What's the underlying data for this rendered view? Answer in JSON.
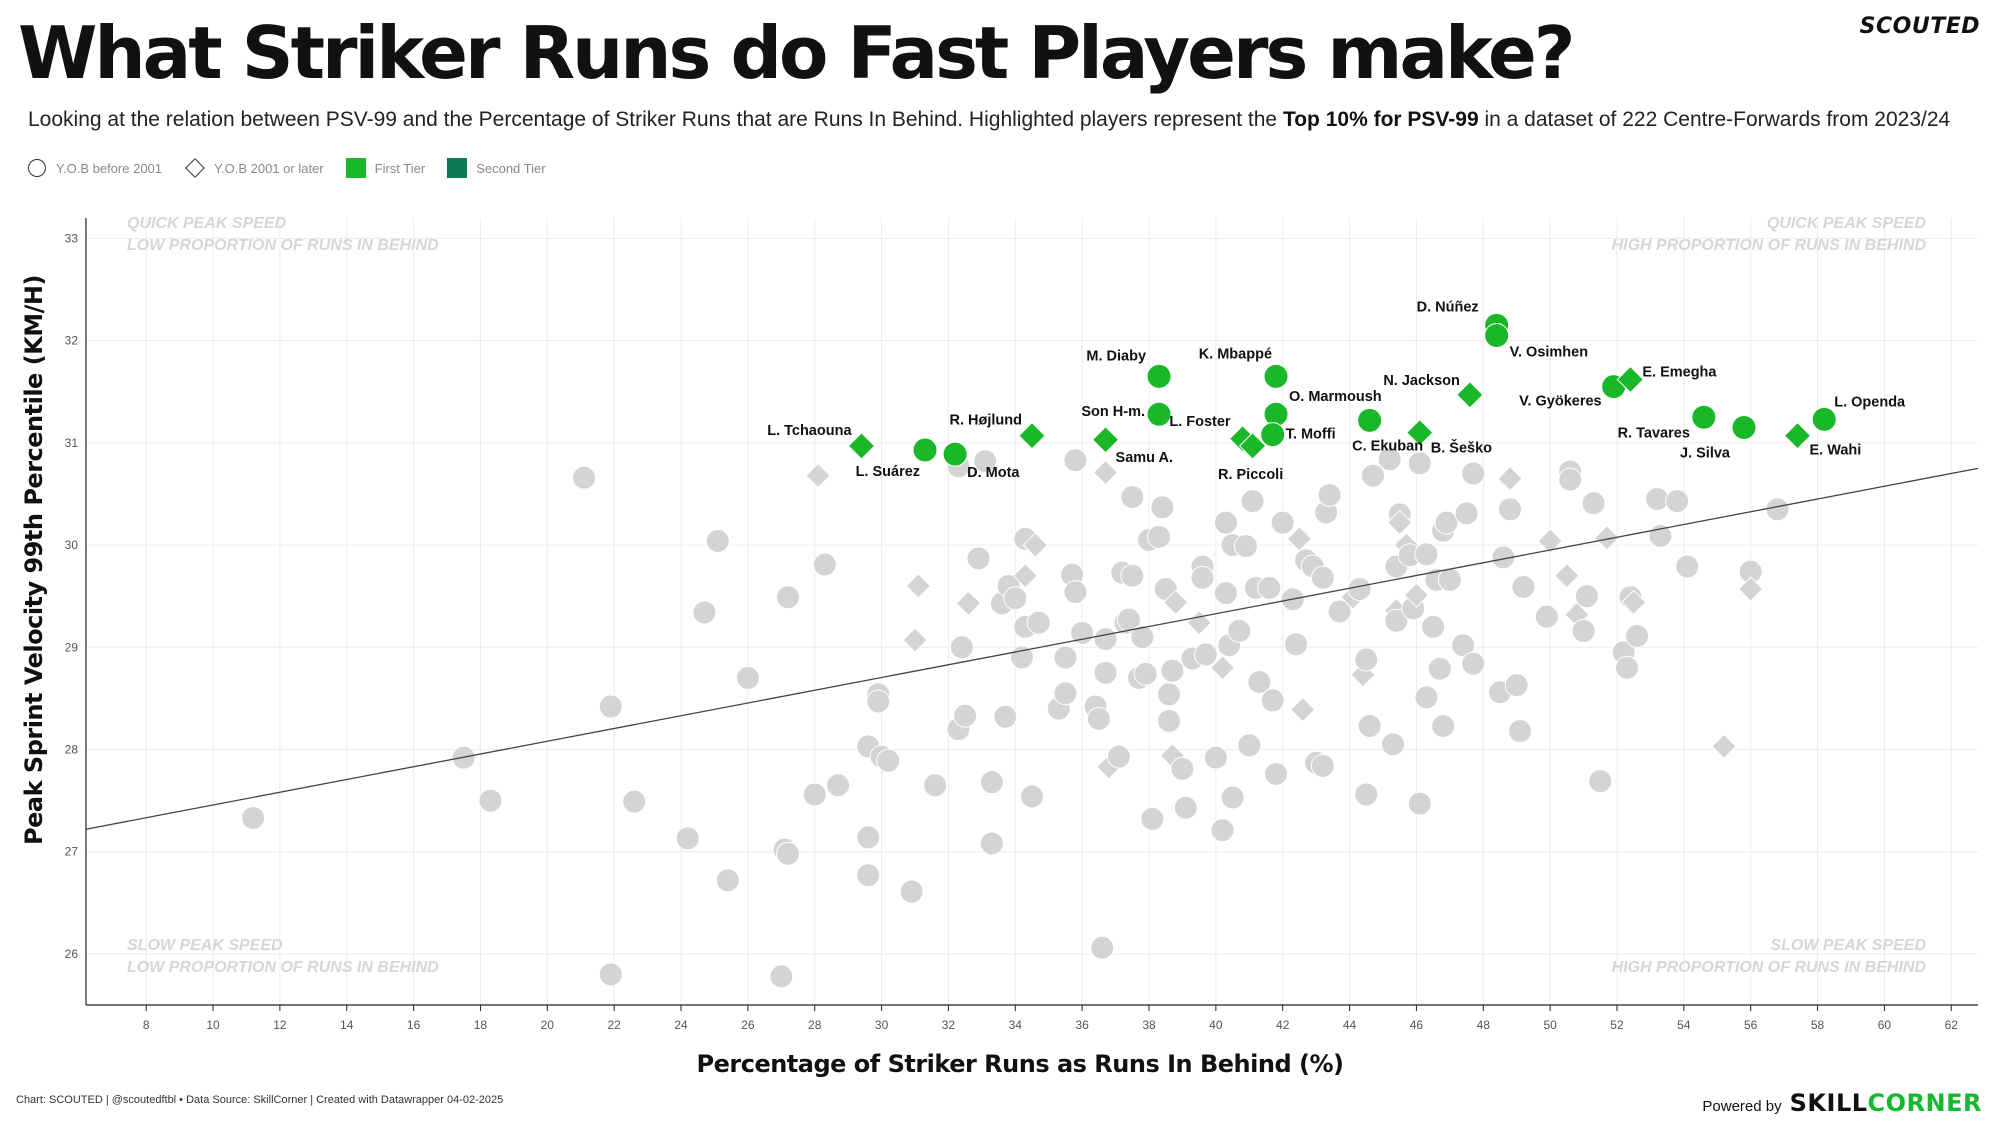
{
  "header": {
    "brand": "SCOUTED",
    "title": "What Striker Runs do Fast Players make?",
    "subtitle_pre": "Looking at the relation between PSV-99 and the Percentage of Striker Runs that are Runs In Behind. Highlighted players represent the ",
    "subtitle_bold": "Top 10% for PSV-99",
    "subtitle_post": " in a dataset of 222 Centre-Forwards from 2023/24"
  },
  "legend": {
    "circle": "Y.O.B before 2001",
    "diamond": "Y.O.B 2001 or later",
    "first_tier": "First Tier",
    "second_tier": "Second Tier",
    "first_tier_color": "#1ab829",
    "second_tier_color": "#0e7a55"
  },
  "footer": {
    "credit": "Chart: SCOUTED | @scoutedftbl • Data Source: SkillCorner | Created with Datawrapper 04-02-2025",
    "powered": "Powered by",
    "logo_a": "SKILL",
    "logo_b": "CORNER"
  },
  "chart_data": {
    "type": "scatter",
    "xlabel": "Percentage of Striker Runs as Runs In Behind (%)",
    "ylabel": "Peak Sprint Velocity 99th Percentile (KM/H)",
    "xlim": [
      6.2,
      62.8
    ],
    "ylim": [
      25.5,
      33.2
    ],
    "xticks": [
      8,
      10,
      12,
      14,
      16,
      18,
      20,
      22,
      24,
      26,
      28,
      30,
      32,
      34,
      36,
      38,
      40,
      42,
      44,
      46,
      48,
      50,
      52,
      54,
      56,
      58,
      60,
      62
    ],
    "yticks": [
      26,
      27,
      28,
      29,
      30,
      31,
      32,
      33
    ],
    "grid": true,
    "quadrant_labels": {
      "top_left": [
        "QUICK PEAK SPEED",
        "LOW PROPORTION OF RUNS IN BEHIND"
      ],
      "top_right": [
        "QUICK PEAK SPEED",
        "HIGH PROPORTION OF RUNS IN BEHIND"
      ],
      "bottom_left": [
        "SLOW PEAK SPEED",
        "LOW PROPORTION OF RUNS IN BEHIND"
      ],
      "bottom_right": [
        "SLOW PEAK SPEED",
        "HIGH PROPORTION OF  RUNS IN BEHIND"
      ]
    },
    "trendline": {
      "x": [
        6.2,
        62.8
      ],
      "y": [
        27.22,
        30.75
      ]
    },
    "colors": {
      "highlight": "#1ab829",
      "background": "#d4d4d4",
      "trend": "#444444"
    },
    "highlighted": [
      {
        "name": "D. Núñez",
        "x": 48.4,
        "y": 32.15,
        "shape": "circle"
      },
      {
        "name": "V. Osimhen",
        "x": 48.4,
        "y": 32.05,
        "shape": "circle"
      },
      {
        "name": "M. Diaby",
        "x": 38.3,
        "y": 31.65,
        "shape": "circle"
      },
      {
        "name": "K. Mbappé",
        "x": 41.8,
        "y": 31.65,
        "shape": "circle"
      },
      {
        "name": "Son H-m.",
        "x": 38.3,
        "y": 31.28,
        "shape": "circle"
      },
      {
        "name": "O. Marmoush",
        "x": 41.8,
        "y": 31.28,
        "shape": "circle"
      },
      {
        "name": "L. Foster",
        "x": 40.8,
        "y": 31.04,
        "shape": "diamond"
      },
      {
        "name": "R. Piccoli",
        "x": 41.1,
        "y": 30.97,
        "shape": "diamond"
      },
      {
        "name": "T. Moffi",
        "x": 41.7,
        "y": 31.08,
        "shape": "circle"
      },
      {
        "name": "C. Ekuban",
        "x": 44.6,
        "y": 31.22,
        "shape": "circle"
      },
      {
        "name": "N. Jackson",
        "x": 47.6,
        "y": 31.47,
        "shape": "diamond"
      },
      {
        "name": "B. Šeško",
        "x": 46.1,
        "y": 31.1,
        "shape": "diamond"
      },
      {
        "name": "V. Gyökeres",
        "x": 51.9,
        "y": 31.55,
        "shape": "circle"
      },
      {
        "name": "E. Emegha",
        "x": 52.4,
        "y": 31.62,
        "shape": "diamond"
      },
      {
        "name": "R. Tavares",
        "x": 54.6,
        "y": 31.25,
        "shape": "circle"
      },
      {
        "name": "J. Silva",
        "x": 55.8,
        "y": 31.15,
        "shape": "circle"
      },
      {
        "name": "L. Openda",
        "x": 58.2,
        "y": 31.23,
        "shape": "circle"
      },
      {
        "name": "E. Wahi",
        "x": 57.4,
        "y": 31.07,
        "shape": "diamond"
      },
      {
        "name": "L. Tchaouna",
        "x": 29.4,
        "y": 30.97,
        "shape": "diamond"
      },
      {
        "name": "L. Suárez",
        "x": 31.3,
        "y": 30.93,
        "shape": "circle"
      },
      {
        "name": "D. Mota",
        "x": 32.2,
        "y": 30.89,
        "shape": "circle"
      },
      {
        "name": "R. Højlund",
        "x": 34.5,
        "y": 31.07,
        "shape": "diamond"
      },
      {
        "name": "Samu A.",
        "x": 36.7,
        "y": 31.03,
        "shape": "diamond"
      }
    ],
    "others": [
      [
        11.2,
        27.33,
        "c"
      ],
      [
        17.5,
        27.92,
        "c"
      ],
      [
        18.3,
        27.5,
        "c"
      ],
      [
        21.1,
        30.66,
        "c"
      ],
      [
        21.9,
        28.42,
        "c"
      ],
      [
        21.9,
        25.8,
        "c"
      ],
      [
        22.6,
        27.49,
        "c"
      ],
      [
        24.2,
        27.13,
        "c"
      ],
      [
        24.7,
        29.34,
        "c"
      ],
      [
        25.1,
        30.04,
        "c"
      ],
      [
        25.4,
        26.72,
        "c"
      ],
      [
        26.0,
        28.7,
        "c"
      ],
      [
        27.0,
        25.78,
        "c"
      ],
      [
        27.1,
        27.02,
        "c"
      ],
      [
        27.2,
        26.98,
        "c"
      ],
      [
        27.2,
        29.49,
        "c"
      ],
      [
        28.0,
        27.56,
        "c"
      ],
      [
        28.1,
        30.68,
        "d"
      ],
      [
        28.3,
        29.81,
        "c"
      ],
      [
        28.7,
        27.65,
        "c"
      ],
      [
        29.6,
        28.03,
        "c"
      ],
      [
        29.6,
        27.14,
        "c"
      ],
      [
        29.6,
        26.77,
        "c"
      ],
      [
        29.9,
        28.54,
        "c"
      ],
      [
        29.9,
        28.47,
        "c"
      ],
      [
        30.0,
        27.93,
        "c"
      ],
      [
        30.2,
        27.89,
        "c"
      ],
      [
        30.9,
        26.61,
        "c"
      ],
      [
        31.0,
        29.07,
        "d"
      ],
      [
        31.1,
        29.6,
        "d"
      ],
      [
        31.6,
        27.65,
        "c"
      ],
      [
        32.3,
        28.2,
        "c"
      ],
      [
        32.3,
        30.77,
        "c"
      ],
      [
        32.4,
        29.0,
        "c"
      ],
      [
        32.5,
        28.33,
        "c"
      ],
      [
        32.6,
        29.43,
        "d"
      ],
      [
        32.9,
        29.87,
        "c"
      ],
      [
        33.1,
        30.82,
        "c"
      ],
      [
        33.3,
        27.08,
        "c"
      ],
      [
        33.3,
        27.68,
        "c"
      ],
      [
        33.6,
        29.43,
        "c"
      ],
      [
        33.7,
        28.32,
        "c"
      ],
      [
        33.8,
        29.6,
        "c"
      ],
      [
        34.0,
        29.48,
        "c"
      ],
      [
        34.2,
        28.9,
        "c"
      ],
      [
        34.3,
        30.06,
        "c"
      ],
      [
        34.3,
        29.7,
        "d"
      ],
      [
        34.3,
        29.2,
        "c"
      ],
      [
        34.5,
        27.54,
        "c"
      ],
      [
        34.6,
        30.0,
        "d"
      ],
      [
        34.7,
        29.24,
        "c"
      ],
      [
        35.3,
        28.4,
        "c"
      ],
      [
        35.5,
        28.55,
        "c"
      ],
      [
        35.5,
        28.9,
        "c"
      ],
      [
        35.7,
        29.71,
        "c"
      ],
      [
        35.8,
        29.54,
        "c"
      ],
      [
        35.8,
        30.83,
        "c"
      ],
      [
        36.0,
        29.14,
        "c"
      ],
      [
        36.4,
        28.42,
        "c"
      ],
      [
        36.5,
        28.3,
        "c"
      ],
      [
        36.6,
        26.06,
        "c"
      ],
      [
        36.7,
        28.75,
        "c"
      ],
      [
        36.7,
        29.08,
        "c"
      ],
      [
        36.7,
        30.71,
        "d"
      ],
      [
        36.8,
        27.83,
        "d"
      ],
      [
        37.1,
        27.93,
        "c"
      ],
      [
        37.2,
        29.73,
        "c"
      ],
      [
        37.3,
        29.24,
        "c"
      ],
      [
        37.4,
        29.27,
        "c"
      ],
      [
        37.5,
        30.47,
        "c"
      ],
      [
        37.5,
        29.7,
        "c"
      ],
      [
        37.7,
        28.7,
        "c"
      ],
      [
        37.8,
        29.1,
        "c"
      ],
      [
        37.9,
        28.74,
        "c"
      ],
      [
        38.0,
        30.05,
        "c"
      ],
      [
        38.1,
        27.32,
        "c"
      ],
      [
        38.3,
        30.08,
        "c"
      ],
      [
        38.4,
        30.37,
        "c"
      ],
      [
        38.5,
        29.57,
        "c"
      ],
      [
        38.6,
        28.54,
        "c"
      ],
      [
        38.6,
        28.28,
        "c"
      ],
      [
        38.7,
        27.94,
        "d"
      ],
      [
        38.7,
        28.77,
        "c"
      ],
      [
        38.8,
        29.44,
        "d"
      ],
      [
        39.0,
        27.81,
        "c"
      ],
      [
        39.1,
        27.43,
        "c"
      ],
      [
        39.3,
        28.89,
        "c"
      ],
      [
        39.5,
        29.24,
        "d"
      ],
      [
        39.6,
        29.79,
        "c"
      ],
      [
        39.6,
        29.68,
        "c"
      ],
      [
        39.7,
        28.93,
        "c"
      ],
      [
        40.0,
        27.92,
        "c"
      ],
      [
        40.2,
        27.21,
        "c"
      ],
      [
        40.2,
        28.8,
        "d"
      ],
      [
        40.3,
        30.22,
        "c"
      ],
      [
        40.3,
        29.53,
        "c"
      ],
      [
        40.4,
        29.02,
        "c"
      ],
      [
        40.5,
        27.53,
        "c"
      ],
      [
        40.5,
        30.0,
        "c"
      ],
      [
        40.7,
        29.16,
        "c"
      ],
      [
        40.9,
        29.99,
        "c"
      ],
      [
        41.0,
        28.04,
        "c"
      ],
      [
        41.1,
        30.43,
        "c"
      ],
      [
        41.2,
        29.58,
        "c"
      ],
      [
        41.3,
        28.66,
        "c"
      ],
      [
        41.6,
        29.58,
        "c"
      ],
      [
        41.7,
        28.48,
        "c"
      ],
      [
        41.8,
        27.76,
        "c"
      ],
      [
        42.0,
        30.22,
        "c"
      ],
      [
        42.3,
        29.47,
        "c"
      ],
      [
        42.4,
        29.03,
        "c"
      ],
      [
        42.5,
        30.06,
        "d"
      ],
      [
        42.6,
        28.39,
        "d"
      ],
      [
        42.7,
        29.85,
        "c"
      ],
      [
        42.9,
        29.79,
        "c"
      ],
      [
        43.0,
        27.87,
        "c"
      ],
      [
        43.2,
        27.84,
        "c"
      ],
      [
        43.2,
        29.68,
        "c"
      ],
      [
        43.3,
        30.32,
        "c"
      ],
      [
        43.4,
        30.49,
        "c"
      ],
      [
        43.7,
        29.35,
        "c"
      ],
      [
        44.1,
        29.49,
        "d"
      ],
      [
        44.3,
        29.57,
        "c"
      ],
      [
        44.4,
        28.73,
        "d"
      ],
      [
        44.5,
        28.88,
        "c"
      ],
      [
        44.5,
        27.56,
        "c"
      ],
      [
        44.6,
        28.23,
        "c"
      ],
      [
        44.7,
        30.68,
        "c"
      ],
      [
        45.2,
        30.84,
        "c"
      ],
      [
        45.3,
        28.05,
        "c"
      ],
      [
        45.4,
        29.36,
        "d"
      ],
      [
        45.4,
        29.26,
        "c"
      ],
      [
        45.4,
        29.79,
        "c"
      ],
      [
        45.5,
        30.3,
        "c"
      ],
      [
        45.5,
        30.22,
        "d"
      ],
      [
        45.7,
        30.0,
        "d"
      ],
      [
        45.8,
        29.9,
        "c"
      ],
      [
        45.9,
        29.38,
        "c"
      ],
      [
        46.0,
        29.51,
        "d"
      ],
      [
        46.1,
        27.47,
        "c"
      ],
      [
        46.1,
        30.8,
        "c"
      ],
      [
        46.3,
        28.51,
        "c"
      ],
      [
        46.3,
        29.91,
        "c"
      ],
      [
        46.5,
        29.2,
        "c"
      ],
      [
        46.6,
        29.66,
        "c"
      ],
      [
        46.7,
        28.79,
        "c"
      ],
      [
        46.8,
        30.14,
        "c"
      ],
      [
        46.8,
        28.23,
        "c"
      ],
      [
        46.9,
        30.22,
        "c"
      ],
      [
        47.0,
        29.66,
        "c"
      ],
      [
        47.4,
        29.02,
        "c"
      ],
      [
        47.5,
        30.31,
        "c"
      ],
      [
        47.7,
        28.84,
        "c"
      ],
      [
        47.7,
        30.7,
        "c"
      ],
      [
        48.5,
        28.56,
        "c"
      ],
      [
        48.6,
        29.88,
        "c"
      ],
      [
        48.8,
        30.35,
        "c"
      ],
      [
        48.8,
        30.65,
        "d"
      ],
      [
        49.0,
        28.63,
        "c"
      ],
      [
        49.1,
        28.18,
        "c"
      ],
      [
        49.2,
        29.59,
        "c"
      ],
      [
        49.9,
        29.3,
        "c"
      ],
      [
        50.0,
        30.04,
        "d"
      ],
      [
        50.5,
        29.7,
        "d"
      ],
      [
        50.6,
        30.72,
        "c"
      ],
      [
        50.6,
        30.64,
        "c"
      ],
      [
        50.8,
        29.32,
        "d"
      ],
      [
        51.0,
        29.16,
        "c"
      ],
      [
        51.1,
        29.5,
        "c"
      ],
      [
        51.3,
        30.41,
        "c"
      ],
      [
        51.5,
        27.69,
        "c"
      ],
      [
        51.7,
        30.07,
        "d"
      ],
      [
        52.2,
        28.95,
        "c"
      ],
      [
        52.3,
        28.8,
        "c"
      ],
      [
        52.4,
        29.49,
        "c"
      ],
      [
        52.5,
        29.44,
        "d"
      ],
      [
        52.6,
        29.11,
        "c"
      ],
      [
        53.2,
        30.45,
        "c"
      ],
      [
        53.3,
        30.09,
        "c"
      ],
      [
        53.8,
        30.43,
        "c"
      ],
      [
        54.1,
        29.79,
        "c"
      ],
      [
        55.2,
        28.03,
        "d"
      ],
      [
        56.0,
        29.74,
        "c"
      ],
      [
        56.0,
        29.57,
        "d"
      ],
      [
        56.8,
        30.35,
        "c"
      ]
    ]
  }
}
